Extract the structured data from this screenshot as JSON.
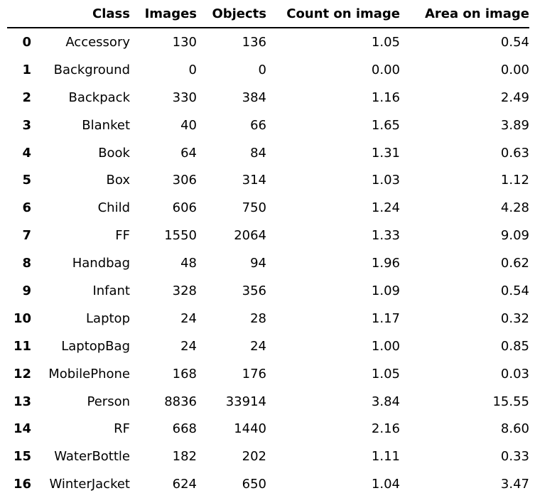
{
  "table": {
    "headers": [
      "",
      "Class",
      "Images",
      "Objects",
      "Count on image",
      "Area on image"
    ],
    "rows": [
      {
        "index": "0",
        "class": "Accessory",
        "images": "130",
        "objects": "136",
        "count_on_image": "1.05",
        "area_on_image": "0.54"
      },
      {
        "index": "1",
        "class": "Background",
        "images": "0",
        "objects": "0",
        "count_on_image": "0.00",
        "area_on_image": "0.00"
      },
      {
        "index": "2",
        "class": "Backpack",
        "images": "330",
        "objects": "384",
        "count_on_image": "1.16",
        "area_on_image": "2.49"
      },
      {
        "index": "3",
        "class": "Blanket",
        "images": "40",
        "objects": "66",
        "count_on_image": "1.65",
        "area_on_image": "3.89"
      },
      {
        "index": "4",
        "class": "Book",
        "images": "64",
        "objects": "84",
        "count_on_image": "1.31",
        "area_on_image": "0.63"
      },
      {
        "index": "5",
        "class": "Box",
        "images": "306",
        "objects": "314",
        "count_on_image": "1.03",
        "area_on_image": "1.12"
      },
      {
        "index": "6",
        "class": "Child",
        "images": "606",
        "objects": "750",
        "count_on_image": "1.24",
        "area_on_image": "4.28"
      },
      {
        "index": "7",
        "class": "FF",
        "images": "1550",
        "objects": "2064",
        "count_on_image": "1.33",
        "area_on_image": "9.09"
      },
      {
        "index": "8",
        "class": "Handbag",
        "images": "48",
        "objects": "94",
        "count_on_image": "1.96",
        "area_on_image": "0.62"
      },
      {
        "index": "9",
        "class": "Infant",
        "images": "328",
        "objects": "356",
        "count_on_image": "1.09",
        "area_on_image": "0.54"
      },
      {
        "index": "10",
        "class": "Laptop",
        "images": "24",
        "objects": "28",
        "count_on_image": "1.17",
        "area_on_image": "0.32"
      },
      {
        "index": "11",
        "class": "LaptopBag",
        "images": "24",
        "objects": "24",
        "count_on_image": "1.00",
        "area_on_image": "0.85"
      },
      {
        "index": "12",
        "class": "MobilePhone",
        "images": "168",
        "objects": "176",
        "count_on_image": "1.05",
        "area_on_image": "0.03"
      },
      {
        "index": "13",
        "class": "Person",
        "images": "8836",
        "objects": "33914",
        "count_on_image": "3.84",
        "area_on_image": "15.55"
      },
      {
        "index": "14",
        "class": "RF",
        "images": "668",
        "objects": "1440",
        "count_on_image": "2.16",
        "area_on_image": "8.60"
      },
      {
        "index": "15",
        "class": "WaterBottle",
        "images": "182",
        "objects": "202",
        "count_on_image": "1.11",
        "area_on_image": "0.33"
      },
      {
        "index": "16",
        "class": "WinterJacket",
        "images": "624",
        "objects": "650",
        "count_on_image": "1.04",
        "area_on_image": "3.47"
      }
    ]
  }
}
